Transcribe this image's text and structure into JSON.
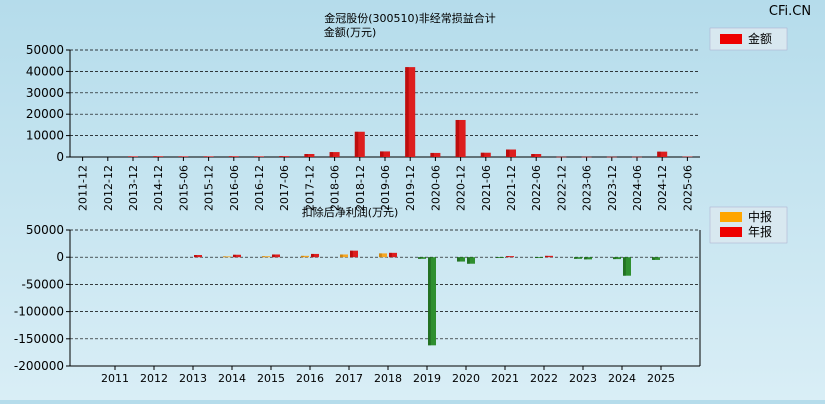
{
  "watermark": "CFi.CN",
  "colors": {
    "annual_bar": "#dd1e1e",
    "annual_light": "#f06a6a",
    "interim_bar": "#f5a623",
    "positive_green": "#2f8f2f",
    "negative_green": "#2f8f2f"
  },
  "chart_data": [
    {
      "type": "bar",
      "title": "金冠股份(300510)非经常损益合计",
      "ylabel": "金额(万元)",
      "legend": [
        {
          "name": "金额",
          "color": "#ee0000"
        }
      ],
      "legend_position": "top-right",
      "ylim": [
        0,
        50000
      ],
      "yticks": [
        0,
        10000,
        20000,
        30000,
        40000,
        50000
      ],
      "grid": true,
      "categories": [
        "2011-12",
        "2012-12",
        "2013-12",
        "2014-12",
        "2015-06",
        "2015-12",
        "2016-06",
        "2016-12",
        "2017-06",
        "2017-12",
        "2018-06",
        "2018-12",
        "2019-06",
        "2019-12",
        "2020-06",
        "2020-12",
        "2021-06",
        "2021-12",
        "2022-06",
        "2022-12",
        "2023-06",
        "2023-12",
        "2024-06",
        "2024-12",
        "2025-06"
      ],
      "values": [
        0,
        0,
        300,
        350,
        300,
        300,
        350,
        300,
        400,
        1400,
        2300,
        11800,
        2600,
        42000,
        1900,
        17300,
        2000,
        3500,
        1400,
        100,
        100,
        100,
        100,
        2500,
        200
      ]
    },
    {
      "type": "bar",
      "title": "扣除后净利润(万元)",
      "legend": [
        {
          "name": "中报",
          "color": "#ffa500"
        },
        {
          "name": "年报",
          "color": "#ee0000"
        }
      ],
      "legend_position": "top-right",
      "ylim": [
        -200000,
        50000
      ],
      "yticks": [
        -200000,
        -150000,
        -100000,
        -50000,
        0,
        50000
      ],
      "grid": true,
      "categories": [
        "2011",
        "2012",
        "2013",
        "2014",
        "2015",
        "2016",
        "2017",
        "2018",
        "2019",
        "2020",
        "2021",
        "2022",
        "2023",
        "2024",
        "2025"
      ],
      "series": [
        {
          "name": "中报",
          "values": [
            null,
            null,
            null,
            1500,
            1800,
            2500,
            5000,
            7000,
            -3000,
            -8000,
            -1500,
            -1500,
            -3000,
            -3500,
            -5000
          ]
        },
        {
          "name": "年报",
          "values": [
            null,
            null,
            4000,
            4500,
            5000,
            6000,
            12000,
            8000,
            -162000,
            -12000,
            2000,
            2500,
            -4000,
            -34000,
            null
          ]
        }
      ]
    }
  ]
}
